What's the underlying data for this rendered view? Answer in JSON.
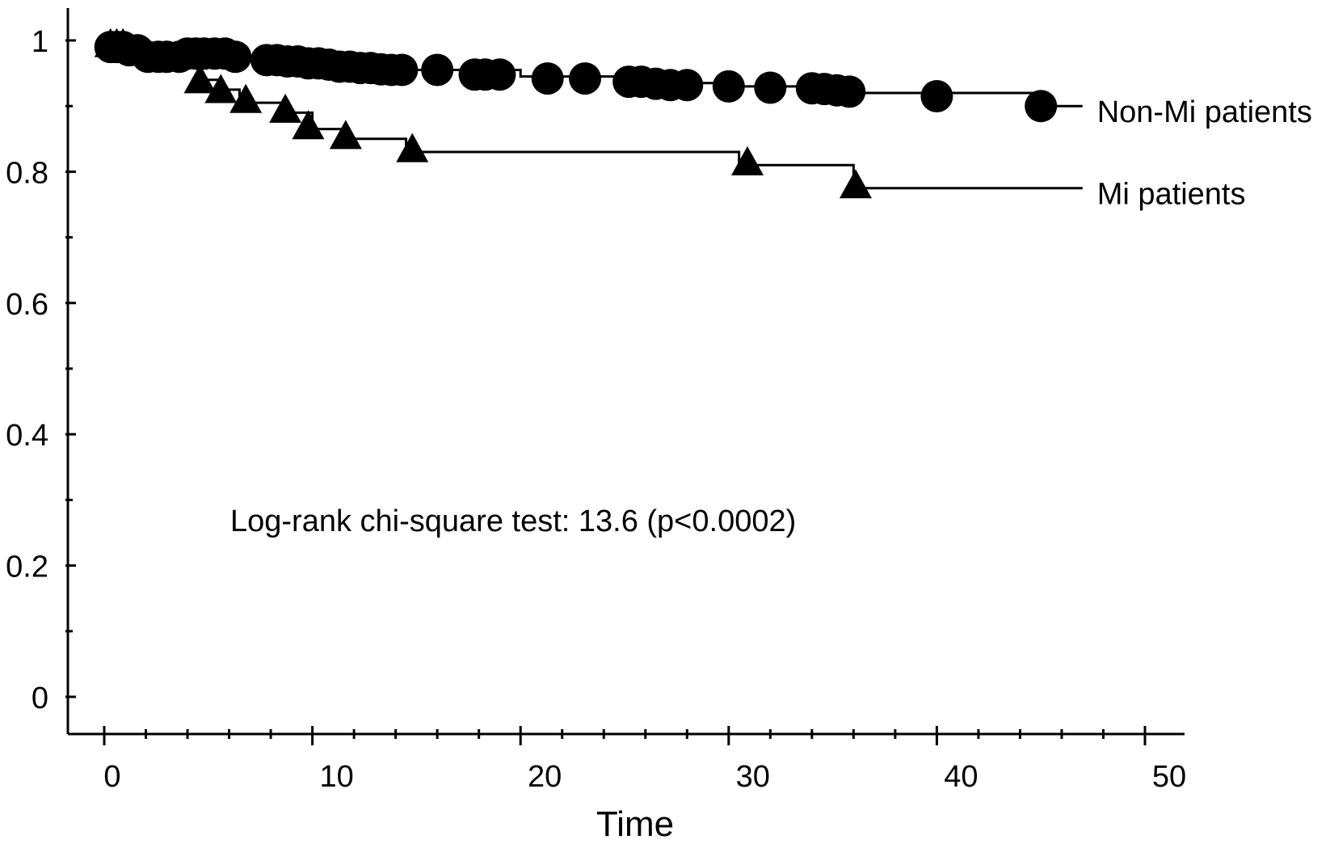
{
  "chart_data": {
    "type": "line",
    "title": "",
    "xlabel": "Time",
    "ylabel": "",
    "xlim": [
      0,
      50
    ],
    "ylim": [
      0,
      1
    ],
    "x_ticks": [
      0,
      10,
      20,
      30,
      40,
      50
    ],
    "x_tick_labels": [
      "0",
      "10",
      "20",
      "30",
      "40",
      "50"
    ],
    "y_ticks": [
      0,
      0.2,
      0.4,
      0.6,
      0.8,
      1
    ],
    "y_tick_labels": [
      "0",
      "0.2",
      "0.4",
      "0.6",
      "0.8",
      "1"
    ],
    "grid": false,
    "legend": "none",
    "annotation": "Log-rank chi-square test: 13.6 (p<0.0002)",
    "series": [
      {
        "name": "Non-Mi patients",
        "marker": "circle",
        "step": [
          [
            0,
            0.99
          ],
          [
            2,
            0.975
          ],
          [
            4,
            0.975
          ],
          [
            7,
            0.97
          ],
          [
            9,
            0.965
          ],
          [
            11,
            0.96
          ],
          [
            14,
            0.955
          ],
          [
            20,
            0.945
          ],
          [
            25,
            0.935
          ],
          [
            30,
            0.93
          ],
          [
            36,
            0.92
          ],
          [
            45,
            0.9
          ],
          [
            47,
            0.9
          ]
        ],
        "points": [
          [
            0.3,
            0.99
          ],
          [
            0.6,
            0.99
          ],
          [
            0.9,
            0.99
          ],
          [
            1.2,
            0.985
          ],
          [
            1.6,
            0.985
          ],
          [
            2.1,
            0.975
          ],
          [
            2.6,
            0.975
          ],
          [
            3.0,
            0.975
          ],
          [
            3.6,
            0.975
          ],
          [
            4.0,
            0.98
          ],
          [
            4.4,
            0.98
          ],
          [
            4.8,
            0.98
          ],
          [
            5.3,
            0.98
          ],
          [
            5.8,
            0.98
          ],
          [
            6.3,
            0.975
          ],
          [
            7.8,
            0.97
          ],
          [
            8.3,
            0.97
          ],
          [
            8.8,
            0.968
          ],
          [
            9.3,
            0.968
          ],
          [
            9.8,
            0.965
          ],
          [
            10.3,
            0.965
          ],
          [
            10.8,
            0.963
          ],
          [
            11.3,
            0.96
          ],
          [
            11.8,
            0.96
          ],
          [
            12.3,
            0.958
          ],
          [
            12.8,
            0.958
          ],
          [
            13.3,
            0.956
          ],
          [
            13.8,
            0.955
          ],
          [
            14.3,
            0.955
          ],
          [
            16.0,
            0.955
          ],
          [
            17.8,
            0.948
          ],
          [
            18.3,
            0.948
          ],
          [
            19.0,
            0.948
          ],
          [
            21.3,
            0.942
          ],
          [
            23.1,
            0.942
          ],
          [
            25.2,
            0.937
          ],
          [
            25.8,
            0.937
          ],
          [
            26.5,
            0.934
          ],
          [
            27.2,
            0.932
          ],
          [
            28.0,
            0.932
          ],
          [
            30.0,
            0.93
          ],
          [
            32.0,
            0.928
          ],
          [
            34.0,
            0.927
          ],
          [
            34.6,
            0.926
          ],
          [
            35.2,
            0.924
          ],
          [
            35.8,
            0.922
          ],
          [
            40.0,
            0.915
          ],
          [
            45.0,
            0.9
          ]
        ]
      },
      {
        "name": "Mi patients",
        "marker": "triangle",
        "step": [
          [
            0,
            0.99
          ],
          [
            4.5,
            0.94
          ],
          [
            5.5,
            0.925
          ],
          [
            6.5,
            0.905
          ],
          [
            8.5,
            0.89
          ],
          [
            10,
            0.865
          ],
          [
            11.5,
            0.85
          ],
          [
            14.5,
            0.83
          ],
          [
            30.5,
            0.81
          ],
          [
            36,
            0.775
          ],
          [
            47,
            0.775
          ]
        ],
        "points": [
          [
            0.3,
            0.99
          ],
          [
            0.6,
            0.99
          ],
          [
            0.9,
            0.99
          ],
          [
            4.6,
            0.935
          ],
          [
            5.6,
            0.92
          ],
          [
            6.8,
            0.905
          ],
          [
            8.7,
            0.89
          ],
          [
            9.8,
            0.865
          ],
          [
            11.6,
            0.85
          ],
          [
            14.8,
            0.83
          ],
          [
            30.9,
            0.81
          ],
          [
            36.1,
            0.775
          ]
        ]
      }
    ]
  }
}
